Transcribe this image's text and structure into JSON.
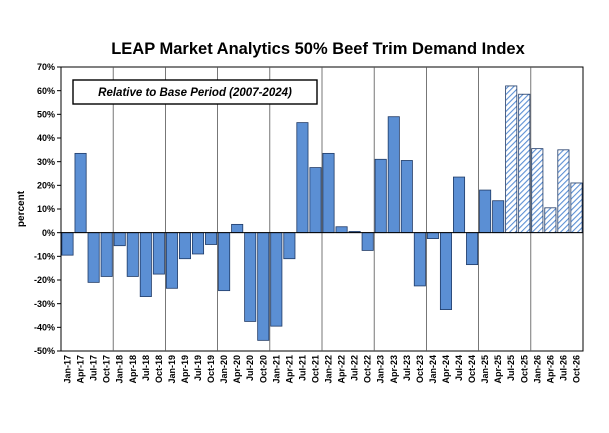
{
  "chart_data": {
    "type": "bar",
    "title": "LEAP Market Analytics 50% Beef Trim Demand Index",
    "annotation": "Relative to Base Period (2007-2024)",
    "ylabel": "percent",
    "xlabel": "",
    "ylim": [
      -50,
      70
    ],
    "y_ticks": [
      -50,
      -40,
      -30,
      -20,
      -10,
      0,
      10,
      20,
      30,
      40,
      50,
      60,
      70
    ],
    "y_tick_labels": [
      "-50%",
      "-40%",
      "-30%",
      "-20%",
      "-10%",
      "0%",
      "10%",
      "20%",
      "30%",
      "40%",
      "50%",
      "60%",
      "70%"
    ],
    "grid": "vertical lines at each January",
    "colors": {
      "actual": "#5b8fd4",
      "forecast_hatch": "#5b8fd4",
      "outline": "#1f3a66"
    },
    "categories": [
      "Jan-17",
      "Apr-17",
      "Jul-17",
      "Oct-17",
      "Jan-18",
      "Apr-18",
      "Jul-18",
      "Oct-18",
      "Jan-19",
      "Apr-19",
      "Jul-19",
      "Oct-19",
      "Jan-20",
      "Apr-20",
      "Jul-20",
      "Oct-20",
      "Jan-21",
      "Apr-21",
      "Jul-21",
      "Oct-21",
      "Jan-22",
      "Apr-22",
      "Jul-22",
      "Oct-22",
      "Jan-23",
      "Apr-23",
      "Jul-23",
      "Oct-23",
      "Jan-24",
      "Apr-24",
      "Jul-24",
      "Oct-24",
      "Jan-25",
      "Apr-25",
      "Jul-25",
      "Oct-25",
      "Jan-26",
      "Apr-26",
      "Jul-26",
      "Oct-26"
    ],
    "values": [
      -9.5,
      33.5,
      -21,
      -18.5,
      -5.5,
      -18.5,
      -27,
      -17.5,
      -23.5,
      -11,
      -9,
      -5,
      -24.5,
      3.5,
      -37.5,
      -45.5,
      -39.5,
      -11,
      46.5,
      27.5,
      33.5,
      2.5,
      0.5,
      -7.5,
      31,
      49,
      30.5,
      -22.5,
      -2.5,
      -32.5,
      23.5,
      -13.5,
      18,
      13.5,
      62,
      58.5,
      35.5,
      10.5,
      35,
      21
    ],
    "forecast": [
      false,
      false,
      false,
      false,
      false,
      false,
      false,
      false,
      false,
      false,
      false,
      false,
      false,
      false,
      false,
      false,
      false,
      false,
      false,
      false,
      false,
      false,
      false,
      false,
      false,
      false,
      false,
      false,
      false,
      false,
      false,
      false,
      false,
      false,
      true,
      true,
      true,
      true,
      true,
      true
    ]
  }
}
